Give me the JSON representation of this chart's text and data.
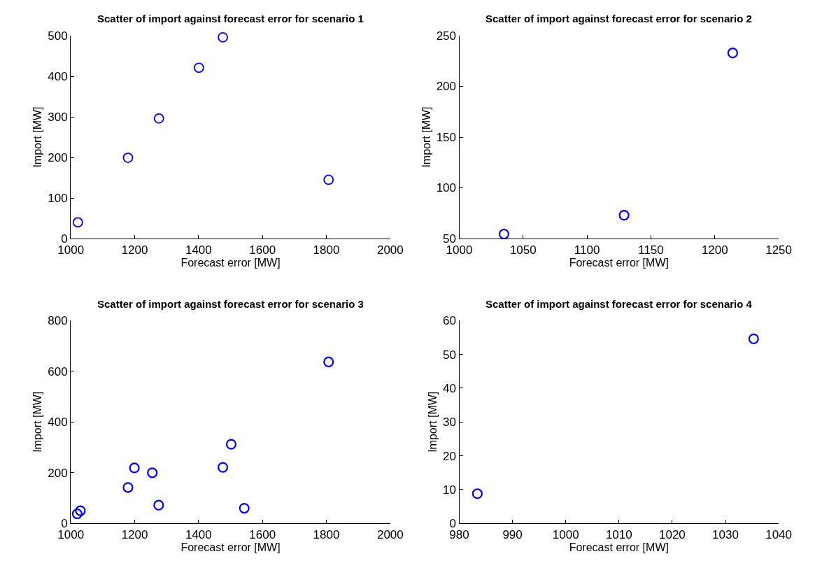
{
  "chart_data": [
    {
      "type": "scatter",
      "title": "Scatter of import against forecast error for scenario 1",
      "xlabel": "Forecast error [MW]",
      "ylabel": "Import [MW]",
      "marker": "circle",
      "series": [
        {
          "color": "#0000ff",
          "x": [
            1022,
            1179,
            1276,
            1401,
            1476,
            1807
          ],
          "values": [
            40,
            199,
            296,
            421,
            496,
            145
          ]
        }
      ],
      "xlim": [
        1000,
        2000
      ],
      "xticks": [
        1000,
        1200,
        1400,
        1600,
        1800,
        2000
      ],
      "ylim": [
        0,
        500
      ],
      "yticks": [
        0,
        100,
        200,
        300,
        400,
        500
      ]
    },
    {
      "type": "scatter",
      "title": "Scatter of import against forecast error for scenario 2",
      "xlabel": "Forecast error [MW]",
      "ylabel": "Import [MW]",
      "marker": "circle",
      "series": [
        {
          "color": "#0000ff",
          "x": [
            1035,
            1129,
            1214
          ],
          "values": [
            54.5,
            73,
            233
          ]
        }
      ],
      "xlim": [
        1000,
        1250
      ],
      "xticks": [
        1000,
        1050,
        1100,
        1150,
        1200,
        1250
      ],
      "ylim": [
        50,
        250
      ],
      "yticks": [
        50,
        100,
        150,
        200,
        250
      ]
    },
    {
      "type": "scatter",
      "title": "Scatter of import against forecast error for scenario 3",
      "xlabel": "Forecast error [MW]",
      "ylabel": "Import [MW]",
      "marker": "circle",
      "series": [
        {
          "color": "#0000ff",
          "x": [
            1020,
            1030,
            1179,
            1199,
            1255,
            1275,
            1476,
            1502,
            1543,
            1807
          ],
          "values": [
            38,
            50,
            142,
            219,
            200,
            72,
            221,
            312,
            60,
            637
          ]
        }
      ],
      "xlim": [
        1000,
        2000
      ],
      "xticks": [
        1000,
        1200,
        1400,
        1600,
        1800,
        2000
      ],
      "ylim": [
        0,
        800
      ],
      "yticks": [
        0,
        200,
        400,
        600,
        800
      ]
    },
    {
      "type": "scatter",
      "title": "Scatter of import against forecast error for scenario 4",
      "xlabel": "Forecast error [MW]",
      "ylabel": "Import [MW]",
      "marker": "circle",
      "series": [
        {
          "color": "#0000ff",
          "x": [
            983.4,
            1035.3
          ],
          "values": [
            8.8,
            54.6
          ]
        }
      ],
      "xlim": [
        980,
        1040
      ],
      "xticks": [
        980,
        990,
        1000,
        1010,
        1020,
        1030,
        1040
      ],
      "ylim": [
        0,
        60
      ],
      "yticks": [
        0,
        10,
        20,
        30,
        40,
        50,
        60
      ]
    }
  ]
}
